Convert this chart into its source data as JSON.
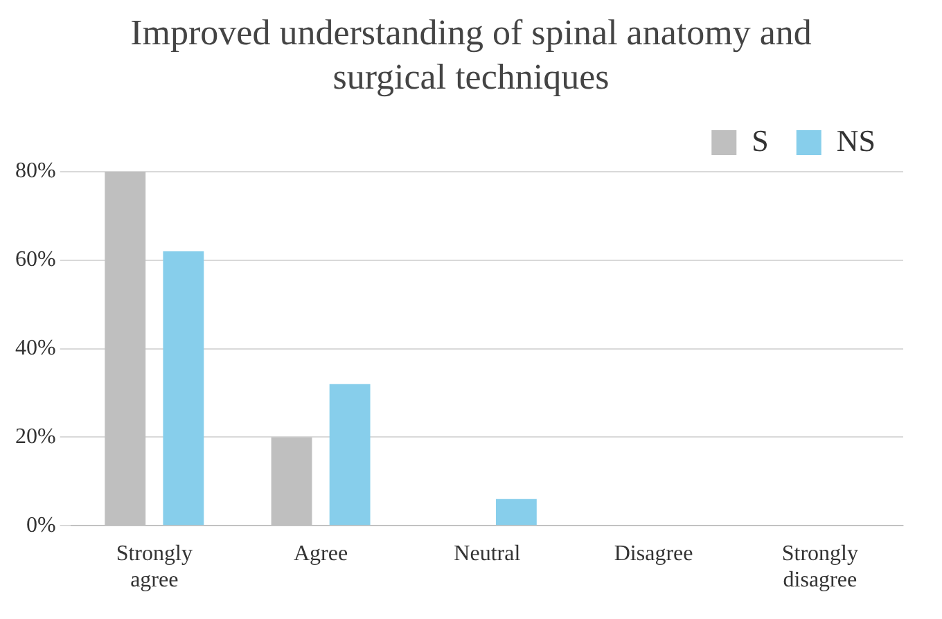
{
  "chart_data": {
    "type": "bar",
    "title": "Improved understanding of spinal anatomy and surgical techniques",
    "categories": [
      "Strongly agree",
      "Agree",
      "Neutral",
      "Disagree",
      "Strongly disagree"
    ],
    "series": [
      {
        "name": "S",
        "color": "#bfbfbf",
        "values": [
          80,
          20,
          0,
          0,
          0
        ]
      },
      {
        "name": "NS",
        "color": "#87ceeb",
        "values": [
          62,
          32,
          6,
          0,
          0
        ]
      }
    ],
    "ylim": [
      0,
      80
    ],
    "yticks": [
      {
        "value": 0,
        "label": "0%"
      },
      {
        "value": 20,
        "label": "20%"
      },
      {
        "value": 40,
        "label": "40%"
      },
      {
        "value": 60,
        "label": "60%"
      },
      {
        "value": 80,
        "label": "80%"
      }
    ],
    "grid": "y",
    "legend": "top right"
  }
}
